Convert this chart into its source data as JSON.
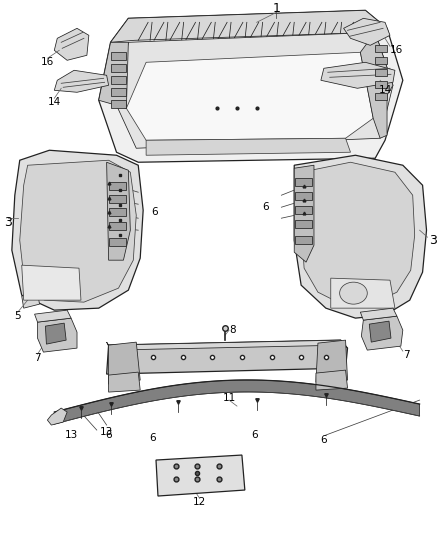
{
  "bg_color": "#ffffff",
  "line_color": "#404040",
  "dark_line": "#222222",
  "fill_light": "#e8e8e8",
  "fill_mid": "#d0d0d0",
  "fill_dark": "#b8b8b8",
  "label_color": "#000000",
  "label_fs": 7.5,
  "lw_main": 0.9,
  "lw_thin": 0.55,
  "lw_thick": 1.4
}
